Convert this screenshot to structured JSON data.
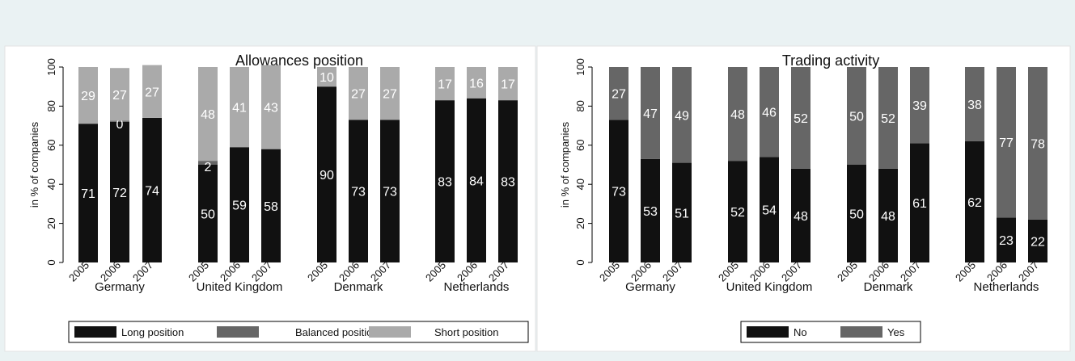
{
  "chart_data": [
    {
      "type": "bar",
      "stacked": true,
      "title": "Allowances position",
      "ylabel": "in % of companies",
      "xlabel": "",
      "ylim": [
        0,
        100
      ],
      "yticks": [
        0,
        20,
        40,
        60,
        80,
        100
      ],
      "grid": false,
      "legend_position": "bottom",
      "groups": [
        "Germany",
        "United Kingdom",
        "Denmark",
        "Netherlands"
      ],
      "years": [
        "2005",
        "2006",
        "2007"
      ],
      "series": [
        {
          "name": "Long position",
          "color": "#111111",
          "label_color": "#ffffff",
          "values": [
            71,
            72,
            74,
            50,
            59,
            58,
            90,
            73,
            73,
            83,
            84,
            83
          ]
        },
        {
          "name": "Balanced position",
          "color": "#666666",
          "label_color": "#ffffff",
          "values": [
            0,
            0.5,
            0,
            2,
            0,
            0,
            0,
            0,
            0,
            0,
            0,
            0
          ]
        },
        {
          "name": "Short position",
          "color": "#aaaaaa",
          "label_color": "#ffffff",
          "values": [
            29,
            27,
            27,
            48,
            41,
            43,
            10,
            27,
            27,
            17,
            16,
            17
          ]
        }
      ],
      "labels": [
        [
          "71",
          "",
          "29"
        ],
        [
          "72",
          "0",
          "27"
        ],
        [
          "74",
          "",
          "27"
        ],
        [
          "50",
          "2",
          "48"
        ],
        [
          "59",
          "",
          "41"
        ],
        [
          "58",
          "",
          "43"
        ],
        [
          "90",
          "",
          "10"
        ],
        [
          "73",
          "",
          "27"
        ],
        [
          "73",
          "",
          "27"
        ],
        [
          "83",
          "",
          "17"
        ],
        [
          "84",
          "",
          "16"
        ],
        [
          "83",
          "",
          "17"
        ]
      ]
    },
    {
      "type": "bar",
      "stacked": true,
      "title": "Trading activity",
      "ylabel": "in % of companies",
      "xlabel": "",
      "ylim": [
        0,
        100
      ],
      "yticks": [
        0,
        20,
        40,
        60,
        80,
        100
      ],
      "grid": false,
      "legend_position": "bottom",
      "groups": [
        "Germany",
        "United Kingdom",
        "Denmark",
        "Netherlands"
      ],
      "years": [
        "2005",
        "2006",
        "2007"
      ],
      "series": [
        {
          "name": "No",
          "color": "#111111",
          "label_color": "#ffffff",
          "values": [
            73,
            53,
            51,
            52,
            54,
            48,
            50,
            48,
            61,
            62,
            23,
            22
          ]
        },
        {
          "name": "Yes",
          "color": "#666666",
          "label_color": "#ffffff",
          "values": [
            27,
            47,
            49,
            48,
            46,
            52,
            50,
            52,
            39,
            38,
            77,
            78
          ]
        }
      ],
      "labels": [
        [
          "73",
          "27"
        ],
        [
          "53",
          "47"
        ],
        [
          "51",
          "49"
        ],
        [
          "52",
          "48"
        ],
        [
          "54",
          "46"
        ],
        [
          "48",
          "52"
        ],
        [
          "50",
          "50"
        ],
        [
          "48",
          "52"
        ],
        [
          "61",
          "39"
        ],
        [
          "62",
          "38"
        ],
        [
          "23",
          "77"
        ],
        [
          "22",
          "78"
        ]
      ]
    }
  ]
}
